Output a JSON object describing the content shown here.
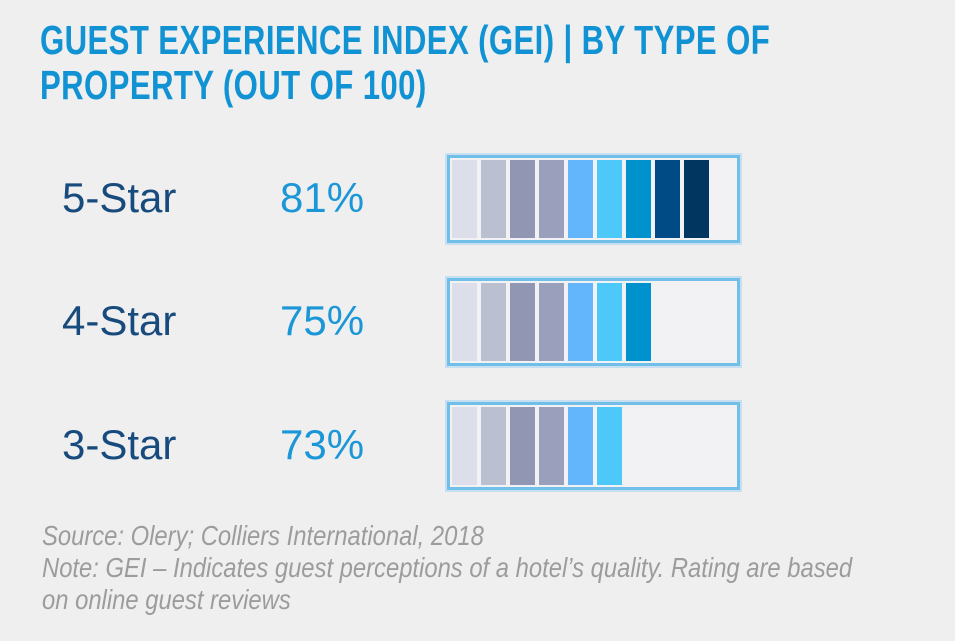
{
  "page": {
    "background": "#efeff0"
  },
  "header": {
    "title_line1": "GUEST EXPERIENCE INDEX (GEI) | BY TYPE OF",
    "title_line2": "PROPERTY (OUT OF 100)",
    "title_color": "#1092d3"
  },
  "chart_data": {
    "type": "bar",
    "title": "GUEST EXPERIENCE INDEX (GEI) | BY TYPE OF PROPERTY (OUT OF 100)",
    "categories": [
      "5-Star",
      "4-Star",
      "3-Star"
    ],
    "values": [
      81,
      75,
      73
    ],
    "value_labels": [
      "81%",
      "75%",
      "73%"
    ],
    "xlim": [
      0,
      100
    ],
    "grid": false,
    "legend": false,
    "orientation": "horizontal",
    "bar_style": "segmented color blocks inside a light-blue outlined track",
    "segment_palette": [
      "#dcdfe9",
      "#bac0cf",
      "#9197b2",
      "#9aa0bb",
      "#63b5fc",
      "#4cc9f9",
      "#0092cc",
      "#004a86",
      "#00365f"
    ],
    "rows": [
      {
        "label": "5-Star",
        "value": 81,
        "value_label": "81%",
        "segment_count": 9
      },
      {
        "label": "4-Star",
        "value": 75,
        "value_label": "75%",
        "segment_count": 7
      },
      {
        "label": "3-Star",
        "value": 73,
        "value_label": "73%",
        "segment_count": 6
      }
    ],
    "track_border_color": "#6fbfe9",
    "track_fill_color": "#f2f2f4",
    "label_color": "#174a7d",
    "value_color": "#1b97d8"
  },
  "footer": {
    "source": "Source: Olery; Colliers International, 2018",
    "note_line1": "Note: GEI – Indicates guest perceptions of a hotel’s quality. Rating are based",
    "note_line2": "on online guest reviews",
    "color": "#9c9c9c"
  }
}
